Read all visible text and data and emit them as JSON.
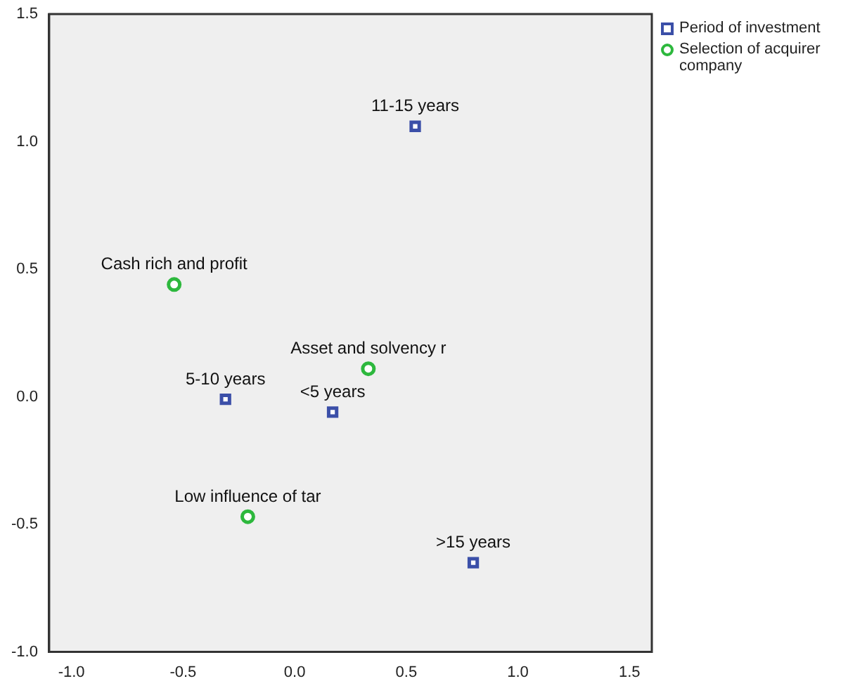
{
  "chart_data": {
    "type": "scatter",
    "legend": "top right",
    "grid": false,
    "xlim": [
      -1.1,
      1.6
    ],
    "xticks": [
      {
        "value": -1,
        "label": "-1.0"
      },
      {
        "value": -0.5,
        "label": "-0.5"
      },
      {
        "value": 0,
        "label": "0.0"
      },
      {
        "value": 0.5,
        "label": "0.5"
      },
      {
        "value": 1,
        "label": "1.0"
      },
      {
        "value": 1.5,
        "label": "1.5"
      }
    ],
    "ylim": [
      -1,
      1.5
    ],
    "yticks": [
      {
        "value": -1,
        "label": "-1.0"
      },
      {
        "value": -0.5,
        "label": "-0.5"
      },
      {
        "value": 0,
        "label": "0.0"
      },
      {
        "value": 0.5,
        "label": "0.5"
      },
      {
        "value": 1,
        "label": "1.0"
      },
      {
        "value": 1.5,
        "label": "1.5"
      }
    ],
    "series": [
      {
        "name": "Period of investment",
        "color": "#3b4fa8",
        "marker": "square",
        "x": [
          0.54,
          -0.31,
          0.17,
          0.8
        ],
        "values": [
          1.06,
          -0.01,
          -0.06,
          -0.65
        ]
      },
      {
        "name": "Selection of acquirer company",
        "color": "#2db83d",
        "marker": "circle",
        "x": [
          -0.54,
          0.33,
          -0.21
        ],
        "values": [
          0.44,
          0.11,
          -0.47
        ]
      }
    ],
    "annotations": [
      {
        "text": "11-15 years",
        "x": 0.54,
        "y": 1.06
      },
      {
        "text": "5-10 years",
        "x": -0.31,
        "y": -0.01
      },
      {
        "text": "<5 years",
        "x": 0.17,
        "y": -0.06
      },
      {
        "text": ">15 years",
        "x": 0.8,
        "y": -0.65
      },
      {
        "text": "Cash rich and profit",
        "x": -0.54,
        "y": 0.44
      },
      {
        "text": "Asset and solvency r",
        "x": 0.33,
        "y": 0.11
      },
      {
        "text": "Low influence of tar",
        "x": -0.21,
        "y": -0.47
      }
    ]
  }
}
